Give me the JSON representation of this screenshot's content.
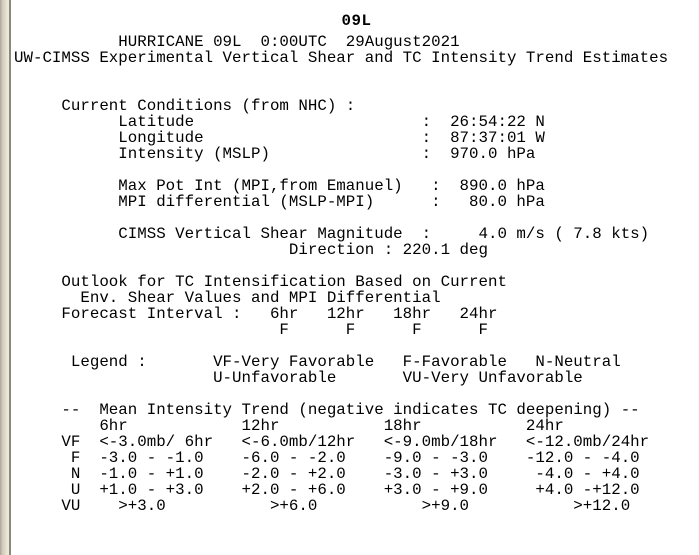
{
  "title": "09L",
  "header": {
    "lines": [
      "           HURRICANE 09L  0:00UTC  29August2021",
      "UW-CIMSS Experimental Vertical Shear and TC Intensity Trend Estimates"
    ]
  },
  "current_conditions": {
    "lines": [
      "     Current Conditions (from NHC) :",
      "           Latitude                        :  26:54:22 N",
      "           Longitude                       :  87:37:01 W",
      "           Intensity (MSLP)                :  970.0 hPa"
    ]
  },
  "mpi": {
    "lines": [
      "           Max Pot Int (MPI,from Emanuel)   :  890.0 hPa",
      "           MPI differential (MSLP-MPI)      :   80.0 hPa"
    ]
  },
  "shear": {
    "lines": [
      "           CIMSS Vertical Shear Magnitude  :     4.0 m/s ( 7.8 kts)",
      "                             Direction : 220.1 deg"
    ]
  },
  "outlook": {
    "lines": [
      "     Outlook for TC Intensification Based on Current",
      "       Env. Shear Values and MPI Differential",
      "     Forecast Interval :   6hr   12hr   18hr   24hr",
      "                            F      F      F      F"
    ]
  },
  "legend": {
    "lines": [
      "      Legend :       VF-Very Favorable   F-Favorable   N-Neutral",
      "                     U-Unfavorable       VU-Very Unfavorable"
    ]
  },
  "trend_table": {
    "lines": [
      "     --  Mean Intensity Trend (negative indicates TC deepening) --",
      "         6hr            12hr           18hr           24hr",
      "     VF  <-3.0mb/ 6hr   <-6.0mb/12hr   <-9.0mb/18hr   <-12.0mb/24hr",
      "      F  -3.0 - -1.0    -6.0 - -2.0    -9.0 - -3.0    -12.0 - -4.0",
      "      N  -1.0 - +1.0    -2.0 - +2.0    -3.0 - +3.0     -4.0 - +4.0",
      "      U  +1.0 - +3.0    +2.0 - +6.0    +3.0 - +9.0     +4.0 -+12.0",
      "     VU    >+3.0           >+6.0           >+9.0           >+12.0"
    ]
  }
}
